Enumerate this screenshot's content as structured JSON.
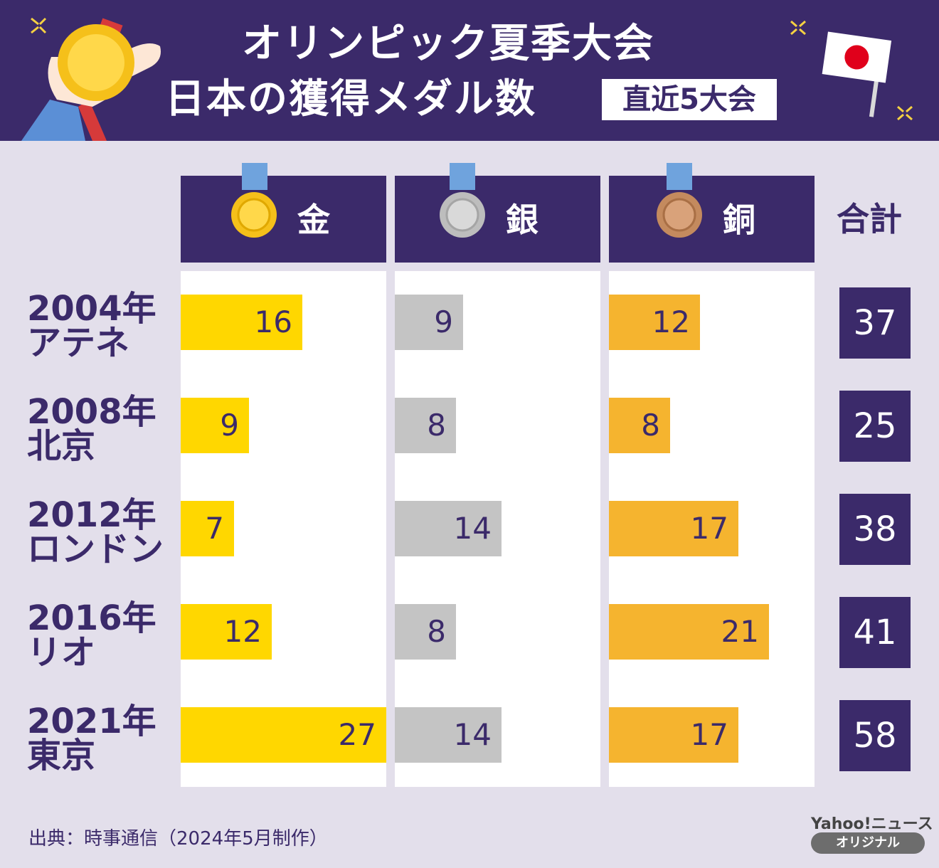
{
  "header": {
    "title_line1": "オリンピック夏季大会",
    "title_line2": "日本の獲得メダル数",
    "badge": "直近5大会"
  },
  "columns": [
    {
      "label": "金",
      "icon": "gold-medal-icon",
      "bar_color": "#ffd700",
      "medal_color": "#f5c01a"
    },
    {
      "label": "銀",
      "icon": "silver-medal-icon",
      "bar_color": "#c4c4c4",
      "medal_color": "#bdbdbd"
    },
    {
      "label": "銅",
      "icon": "bronze-medal-icon",
      "bar_color": "#f5b42f",
      "medal_color": "#c48a5e"
    }
  ],
  "total_label": "合計",
  "chart_data": {
    "type": "bar",
    "categories": [
      "2004年 アテネ",
      "2008年 北京",
      "2012年 ロンドン",
      "2016年 リオ",
      "2021年 東京"
    ],
    "rows": [
      {
        "year": "2004年",
        "city": "アテネ"
      },
      {
        "year": "2008年",
        "city": "北京"
      },
      {
        "year": "2012年",
        "city": "ロンドン"
      },
      {
        "year": "2016年",
        "city": "リオ"
      },
      {
        "year": "2021年",
        "city": "東京"
      }
    ],
    "series": [
      {
        "name": "金",
        "values": [
          16,
          9,
          7,
          12,
          27
        ]
      },
      {
        "name": "銀",
        "values": [
          9,
          8,
          14,
          8,
          14
        ]
      },
      {
        "name": "銅",
        "values": [
          12,
          8,
          17,
          21,
          17
        ]
      }
    ],
    "totals": [
      37,
      25,
      38,
      41,
      58
    ],
    "xlim": [
      0,
      27
    ]
  },
  "footer": {
    "source": "出典：時事通信（2024年5月制作）",
    "logo_top": "Yahoo!ニュース",
    "logo_bottom": "オリジナル"
  },
  "colors": {
    "primary": "#3b2a6a",
    "background": "#e3dfeb",
    "ribbon": "#6fa3dd"
  }
}
